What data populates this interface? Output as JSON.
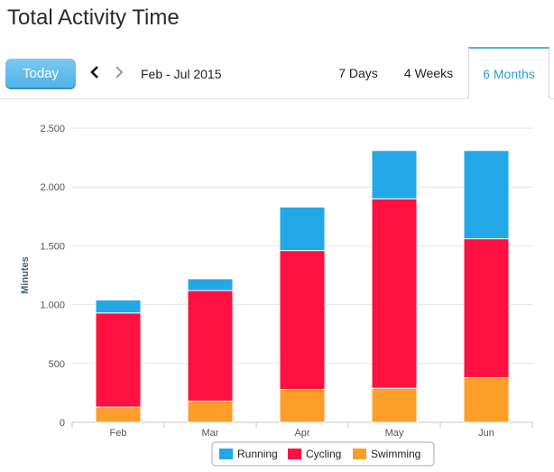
{
  "page": {
    "title": "Total Activity Time"
  },
  "toolbar": {
    "today_label": "Today",
    "date_range": "Feb - Jul 2015",
    "tabs": [
      {
        "label": "7 Days",
        "active": false
      },
      {
        "label": "4 Weeks",
        "active": false
      },
      {
        "label": "6 Months",
        "active": true
      }
    ]
  },
  "icons": {
    "prev": "chevron-left-icon",
    "next": "chevron-right-icon"
  },
  "chart_data": {
    "type": "bar",
    "stacked": true,
    "ylabel": "Minutes",
    "ylim": [
      0,
      2500
    ],
    "yticks": [
      0,
      500,
      1000,
      1500,
      2000,
      2500
    ],
    "ytick_labels": [
      "0",
      "500",
      "1.000",
      "1.500",
      "2.000",
      "2.500"
    ],
    "categories": [
      "Feb",
      "Mar",
      "Apr",
      "May",
      "Jun"
    ],
    "series": [
      {
        "name": "Swimming",
        "color": "#fd9e2a",
        "values": [
          130,
          180,
          280,
          290,
          380
        ]
      },
      {
        "name": "Cycling",
        "color": "#fe1040",
        "values": [
          800,
          940,
          1180,
          1610,
          1180
        ]
      },
      {
        "name": "Running",
        "color": "#22a8e6",
        "values": [
          110,
          100,
          370,
          410,
          750
        ]
      }
    ],
    "legend_order": [
      "Running",
      "Cycling",
      "Swimming"
    ],
    "legend_position": "bottom-center",
    "grid": true
  }
}
